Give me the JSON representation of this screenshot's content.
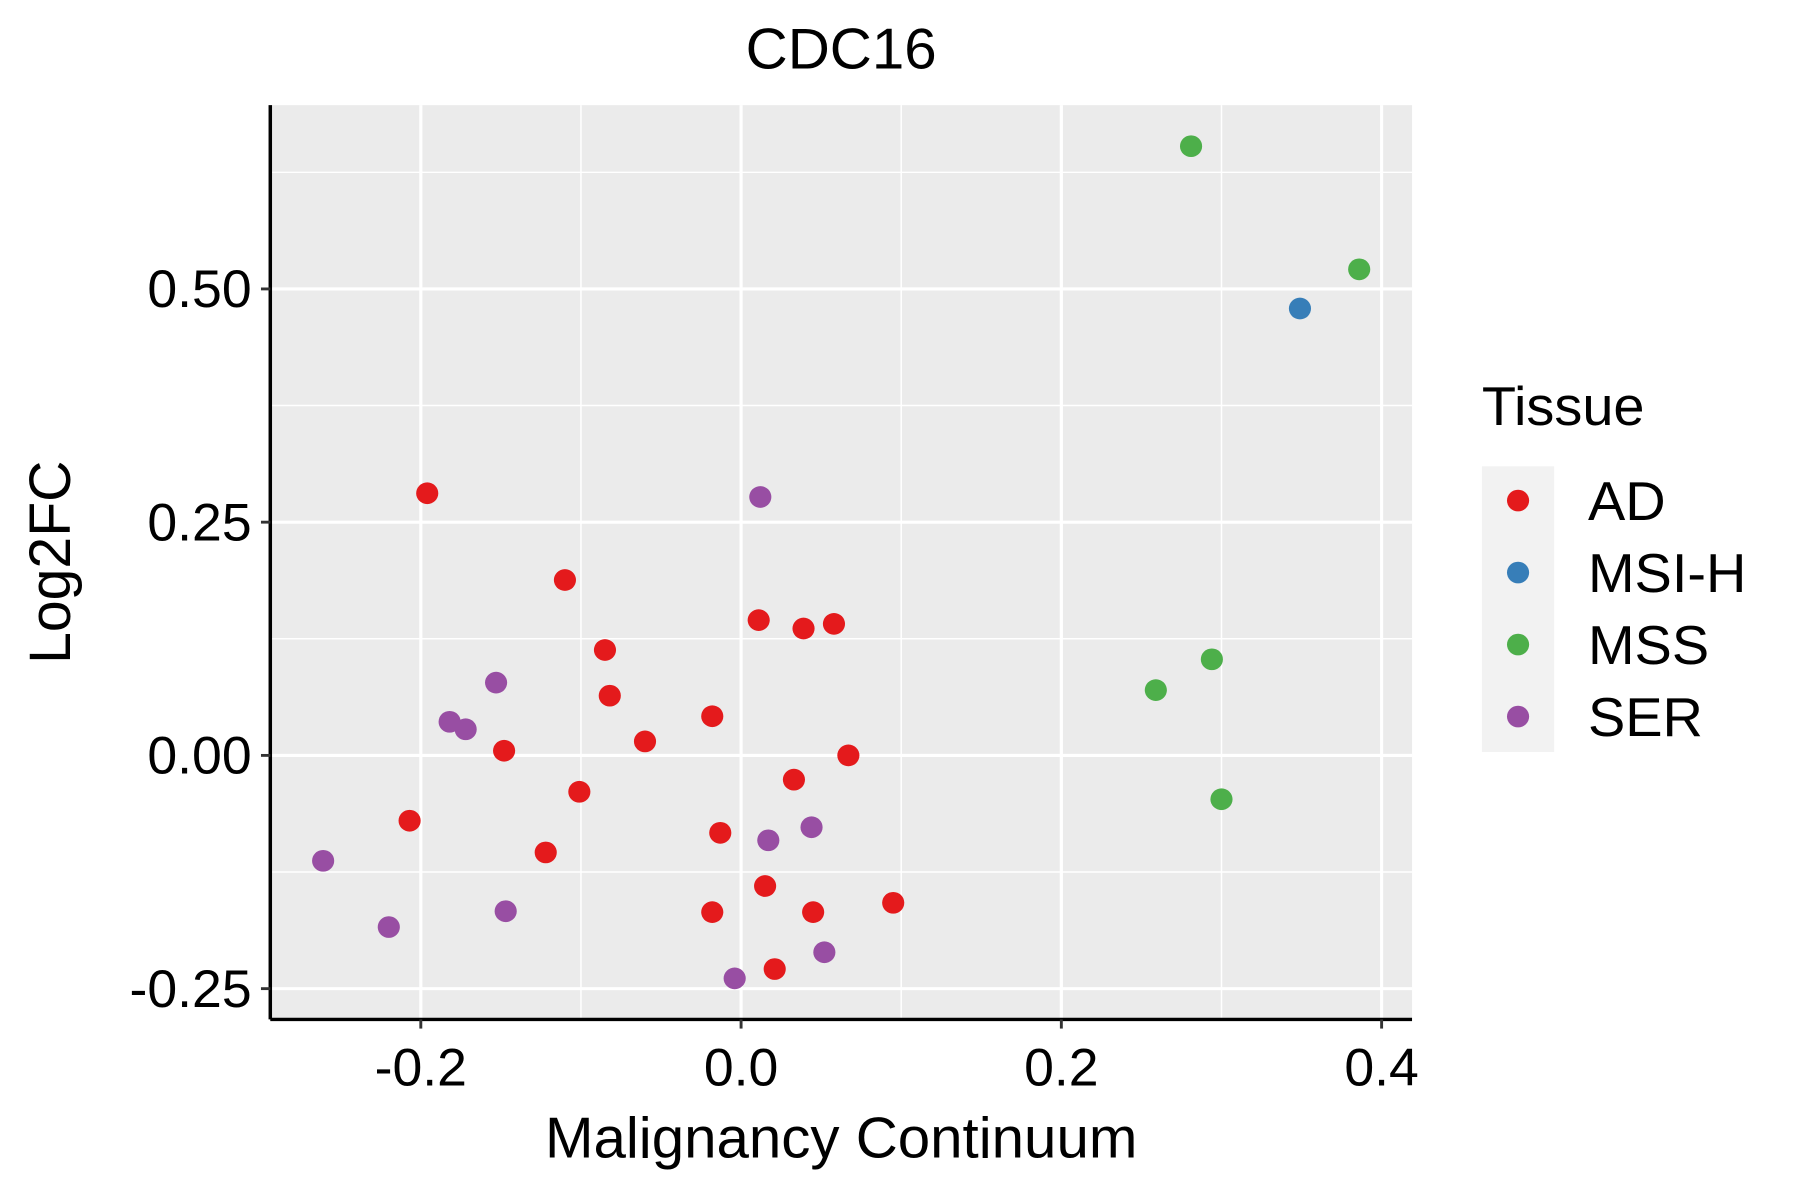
{
  "chart_data": {
    "type": "scatter",
    "title": "CDC16",
    "xlabel": "Malignancy Continuum",
    "ylabel": "Log2FC",
    "xlim": [
      -0.294,
      0.419
    ],
    "ylim": [
      -0.283,
      0.697
    ],
    "x_ticks": [
      -0.2,
      0.0,
      0.2,
      0.4
    ],
    "x_tick_labels": [
      "-0.2",
      "0.0",
      "0.2",
      "0.4"
    ],
    "y_ticks": [
      -0.25,
      0.0,
      0.25,
      0.5
    ],
    "y_tick_labels": [
      "-0.25",
      "0.00",
      "0.25",
      "0.50"
    ],
    "grid": true,
    "legend": {
      "title": "Tissue",
      "position": "right"
    },
    "series": [
      {
        "name": "AD",
        "color": "#E41A1C",
        "points": [
          [
            -0.196,
            0.281
          ],
          [
            -0.11,
            0.188
          ],
          [
            -0.085,
            0.113
          ],
          [
            -0.082,
            0.064
          ],
          [
            -0.06,
            0.015
          ],
          [
            -0.018,
            0.042
          ],
          [
            0.011,
            0.145
          ],
          [
            0.039,
            0.136
          ],
          [
            0.058,
            0.141
          ],
          [
            0.067,
            0.0
          ],
          [
            0.033,
            -0.026
          ],
          [
            -0.148,
            0.005
          ],
          [
            -0.101,
            -0.039
          ],
          [
            -0.207,
            -0.07
          ],
          [
            -0.122,
            -0.104
          ],
          [
            -0.013,
            -0.083
          ],
          [
            0.015,
            -0.14
          ],
          [
            -0.018,
            -0.168
          ],
          [
            0.045,
            -0.168
          ],
          [
            0.095,
            -0.158
          ],
          [
            0.021,
            -0.229
          ]
        ]
      },
      {
        "name": "MSI-H",
        "color": "#377EB8",
        "points": [
          [
            0.349,
            0.479
          ]
        ]
      },
      {
        "name": "MSS",
        "color": "#4DAF4A",
        "points": [
          [
            0.281,
            0.653
          ],
          [
            0.386,
            0.521
          ],
          [
            0.294,
            0.103
          ],
          [
            0.259,
            0.07
          ],
          [
            0.3,
            -0.047
          ]
        ]
      },
      {
        "name": "SER",
        "color": "#984EA3",
        "points": [
          [
            0.012,
            0.277
          ],
          [
            -0.153,
            0.078
          ],
          [
            -0.182,
            0.036
          ],
          [
            -0.172,
            0.028
          ],
          [
            -0.261,
            -0.113
          ],
          [
            -0.22,
            -0.184
          ],
          [
            -0.147,
            -0.167
          ],
          [
            0.017,
            -0.091
          ],
          [
            0.044,
            -0.077
          ],
          [
            0.052,
            -0.211
          ],
          [
            -0.004,
            -0.239
          ]
        ]
      }
    ]
  }
}
